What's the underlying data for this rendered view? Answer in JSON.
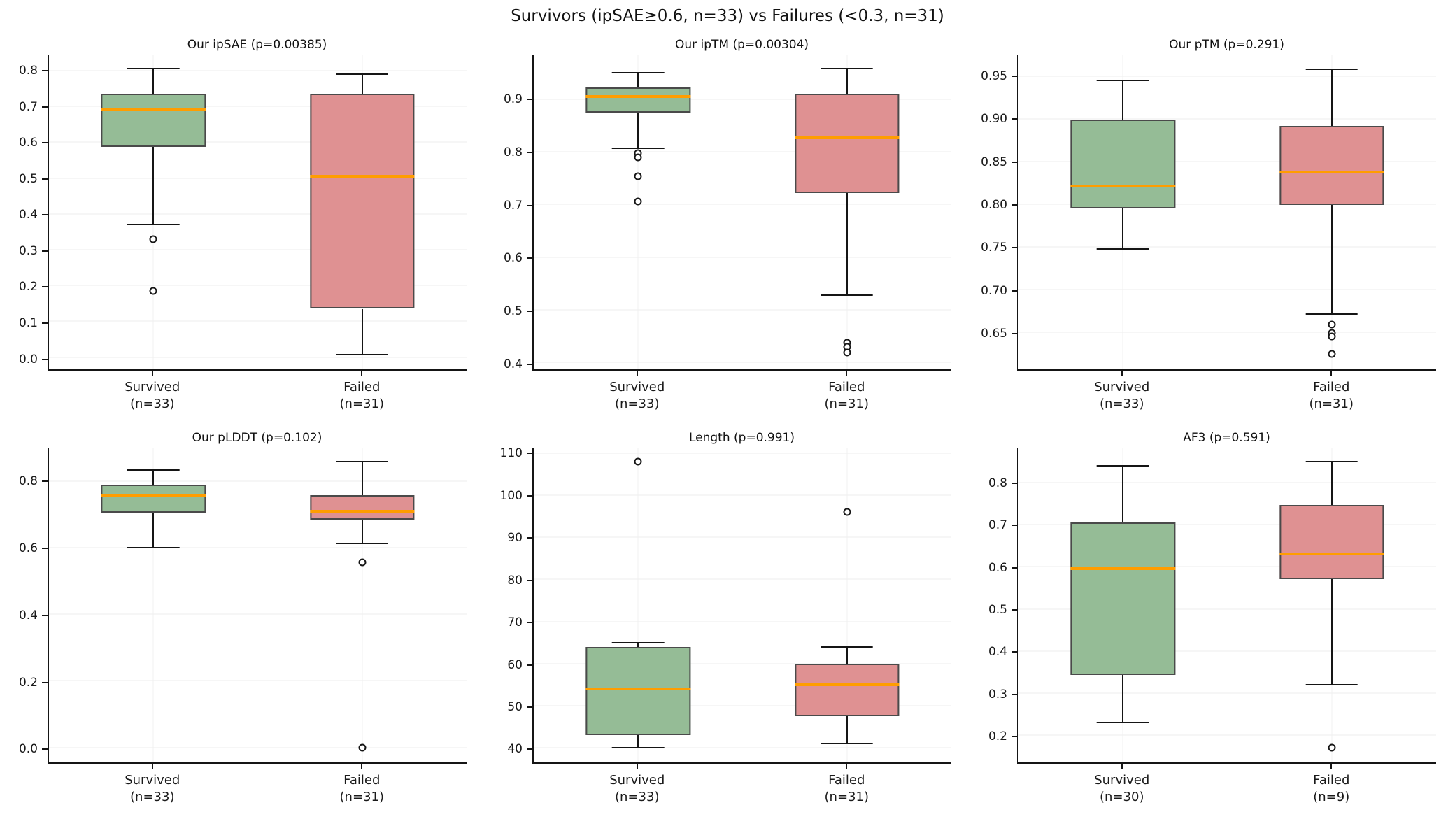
{
  "figure": {
    "title": "Survivors (ipSAE≥0.6, n=33) vs Failures (<0.3, n=31)",
    "colors": {
      "survived_fill": "#95BC96",
      "failed_fill": "#DF9192",
      "median": "#FF9D00",
      "box_edge": "#4A4A4A",
      "whisker": "#151515",
      "grid_h": "#ECECEC",
      "grid_v": "#F1F1F1",
      "spine": "#151515",
      "outlier_stroke": "#151515",
      "background": "#FFFFFF"
    }
  },
  "chart_data": [
    {
      "id": "our-ipsae",
      "type": "box",
      "title": "Our ipSAE (p=0.00385)",
      "p_value": 0.00385,
      "ylim": [
        -0.032,
        0.845
      ],
      "yticks": [
        0.0,
        0.1,
        0.2,
        0.3,
        0.4,
        0.5,
        0.6,
        0.7,
        0.8
      ],
      "ytick_labels": [
        "0.0",
        "0.1",
        "0.2",
        "0.3",
        "0.4",
        "0.5",
        "0.6",
        "0.7",
        "0.8"
      ],
      "groups": [
        {
          "category": "survived",
          "label_line1": "Survived",
          "label_line2": "(n=33)",
          "n": 33,
          "whisker_low": 0.37,
          "q1": 0.588,
          "median": 0.69,
          "q3": 0.735,
          "whisker_high": 0.805,
          "outliers": [
            0.33,
            0.185
          ]
        },
        {
          "category": "failed",
          "label_line1": "Failed",
          "label_line2": "(n=31)",
          "n": 31,
          "whisker_low": 0.008,
          "q1": 0.135,
          "median": 0.505,
          "q3": 0.736,
          "whisker_high": 0.791,
          "outliers": []
        }
      ]
    },
    {
      "id": "our-iptm",
      "type": "box",
      "title": "Our ipTM (p=0.00304)",
      "p_value": 0.00304,
      "ylim": [
        0.388,
        0.985
      ],
      "yticks": [
        0.4,
        0.5,
        0.6,
        0.7,
        0.8,
        0.9
      ],
      "ytick_labels": [
        "0.4",
        "0.5",
        "0.6",
        "0.7",
        "0.8",
        "0.9"
      ],
      "groups": [
        {
          "category": "survived",
          "label_line1": "Survived",
          "label_line2": "(n=33)",
          "n": 33,
          "whisker_low": 0.807,
          "q1": 0.875,
          "median": 0.905,
          "q3": 0.923,
          "whisker_high": 0.95,
          "outliers": [
            0.797,
            0.789,
            0.753,
            0.706
          ]
        },
        {
          "category": "failed",
          "label_line1": "Failed",
          "label_line2": "(n=31)",
          "n": 31,
          "whisker_low": 0.528,
          "q1": 0.722,
          "median": 0.827,
          "q3": 0.91,
          "whisker_high": 0.958,
          "outliers": [
            0.437,
            0.429,
            0.418
          ]
        }
      ]
    },
    {
      "id": "our-ptm",
      "type": "box",
      "title": "Our pTM (p=0.291)",
      "p_value": 0.291,
      "ylim": [
        0.607,
        0.975
      ],
      "yticks": [
        0.65,
        0.7,
        0.75,
        0.8,
        0.85,
        0.9,
        0.95
      ],
      "ytick_labels": [
        "0.65",
        "0.70",
        "0.75",
        "0.80",
        "0.85",
        "0.90",
        "0.95"
      ],
      "groups": [
        {
          "category": "survived",
          "label_line1": "Survived",
          "label_line2": "(n=33)",
          "n": 33,
          "whisker_low": 0.747,
          "q1": 0.795,
          "median": 0.821,
          "q3": 0.899,
          "whisker_high": 0.945,
          "outliers": []
        },
        {
          "category": "failed",
          "label_line1": "Failed",
          "label_line2": "(n=31)",
          "n": 31,
          "whisker_low": 0.671,
          "q1": 0.799,
          "median": 0.837,
          "q3": 0.891,
          "whisker_high": 0.958,
          "outliers": [
            0.659,
            0.649,
            0.645,
            0.624
          ]
        }
      ]
    },
    {
      "id": "our-plddt",
      "type": "box",
      "title": "Our pLDDT (p=0.102)",
      "p_value": 0.102,
      "ylim": [
        -0.043,
        0.901
      ],
      "yticks": [
        0.0,
        0.2,
        0.4,
        0.6,
        0.8
      ],
      "ytick_labels": [
        "0.0",
        "0.2",
        "0.4",
        "0.6",
        "0.8"
      ],
      "groups": [
        {
          "category": "survived",
          "label_line1": "Survived",
          "label_line2": "(n=33)",
          "n": 33,
          "whisker_low": 0.6,
          "q1": 0.705,
          "median": 0.757,
          "q3": 0.79,
          "whisker_high": 0.833,
          "outliers": []
        },
        {
          "category": "failed",
          "label_line1": "Failed",
          "label_line2": "(n=31)",
          "n": 31,
          "whisker_low": 0.613,
          "q1": 0.685,
          "median": 0.71,
          "q3": 0.757,
          "whisker_high": 0.858,
          "outliers": [
            0.556,
            0.0
          ]
        }
      ]
    },
    {
      "id": "length",
      "type": "box",
      "title": "Length (p=0.991)",
      "p_value": 0.991,
      "ylim": [
        36.6,
        111.4
      ],
      "yticks": [
        40,
        50,
        60,
        70,
        80,
        90,
        100,
        110
      ],
      "ytick_labels": [
        "40",
        "50",
        "60",
        "70",
        "80",
        "90",
        "100",
        "110"
      ],
      "groups": [
        {
          "category": "survived",
          "label_line1": "Survived",
          "label_line2": "(n=33)",
          "n": 33,
          "whisker_low": 40,
          "q1": 43,
          "median": 54,
          "q3": 64,
          "whisker_high": 65,
          "outliers": [
            108
          ]
        },
        {
          "category": "failed",
          "label_line1": "Failed",
          "label_line2": "(n=31)",
          "n": 31,
          "whisker_low": 41,
          "q1": 47.5,
          "median": 55,
          "q3": 60,
          "whisker_high": 64,
          "outliers": [
            96
          ]
        }
      ]
    },
    {
      "id": "af3",
      "type": "box",
      "title": "AF3 (p=0.591)",
      "p_value": 0.591,
      "ylim": [
        0.136,
        0.884
      ],
      "yticks": [
        0.2,
        0.3,
        0.4,
        0.5,
        0.6,
        0.7,
        0.8
      ],
      "ytick_labels": [
        "0.2",
        "0.3",
        "0.4",
        "0.5",
        "0.6",
        "0.7",
        "0.8"
      ],
      "groups": [
        {
          "category": "survived",
          "label_line1": "Survived",
          "label_line2": "(n=30)",
          "n": 30,
          "whisker_low": 0.23,
          "q1": 0.343,
          "median": 0.595,
          "q3": 0.705,
          "whisker_high": 0.84,
          "outliers": []
        },
        {
          "category": "failed",
          "label_line1": "Failed",
          "label_line2": "(n=9)",
          "n": 9,
          "whisker_low": 0.32,
          "q1": 0.57,
          "median": 0.63,
          "q3": 0.748,
          "whisker_high": 0.85,
          "outliers": [
            0.17
          ]
        }
      ]
    }
  ]
}
